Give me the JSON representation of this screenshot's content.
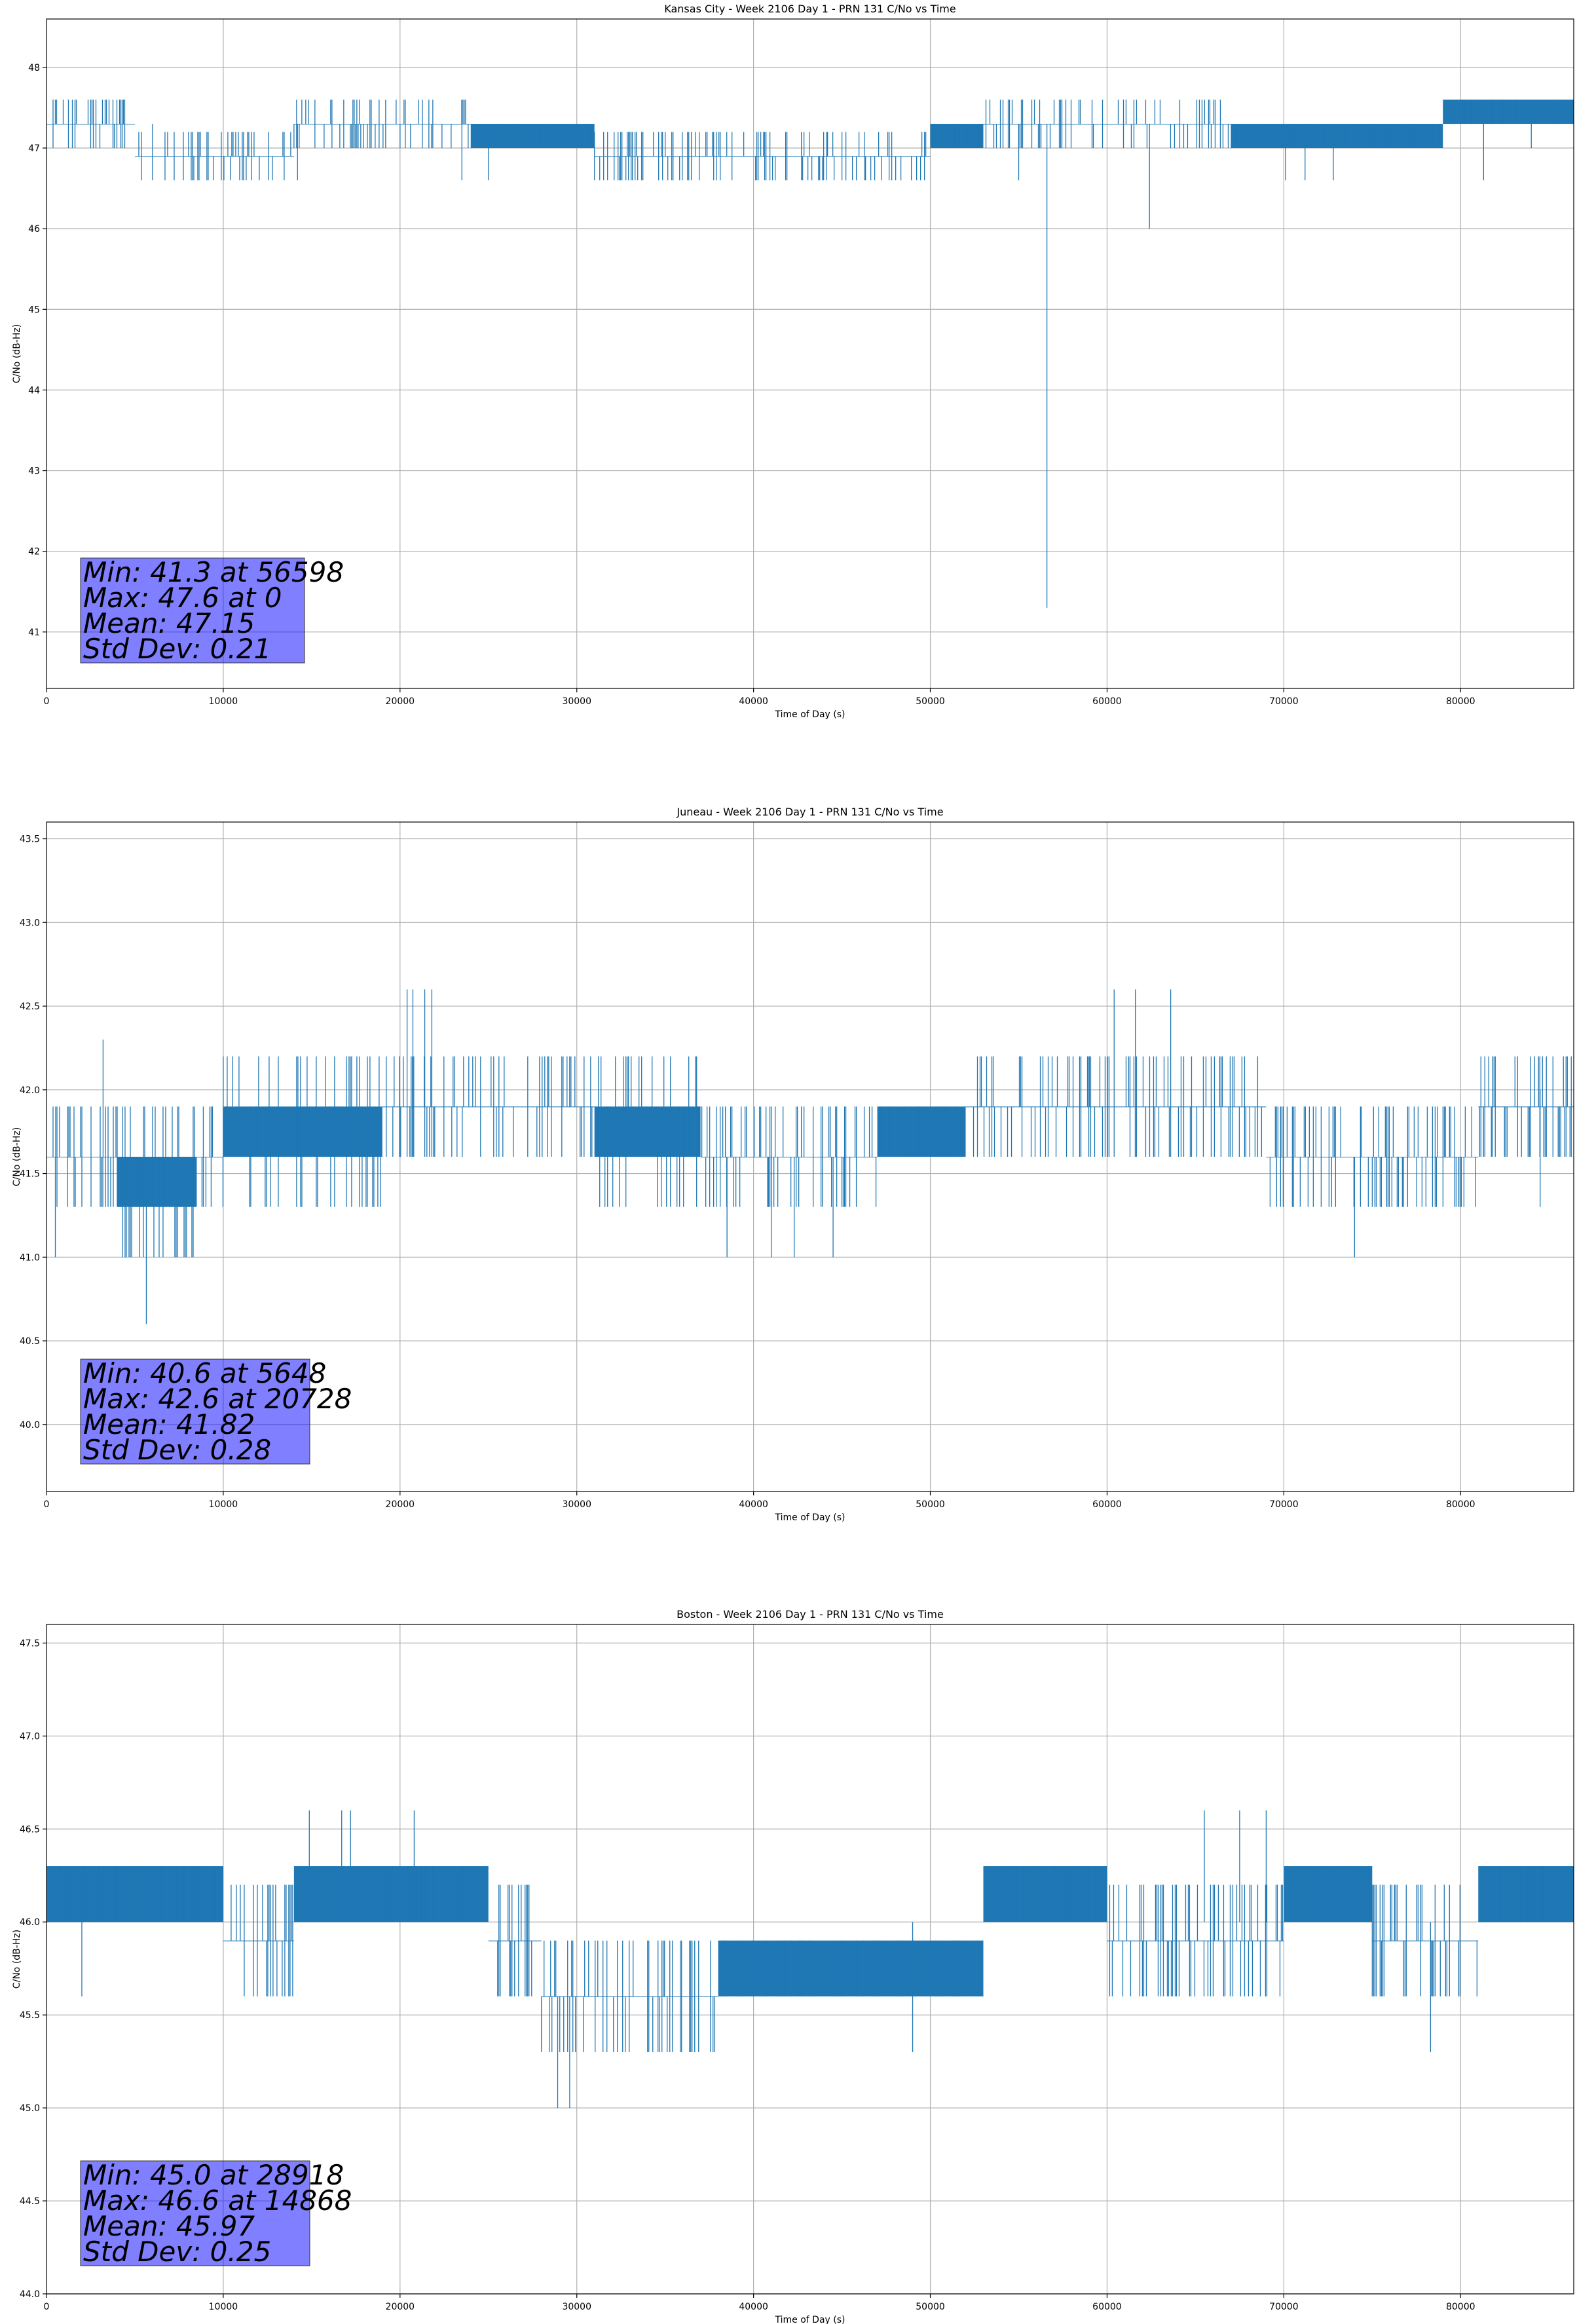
{
  "chart_data": [
    {
      "type": "line",
      "title": "Kansas City - Week 2106 Day 1 - PRN 131 C/No vs Time",
      "xlabel": "Time of Day (s)",
      "ylabel": "C/No (dB-Hz)",
      "xlim": [
        0,
        86400
      ],
      "ylim": [
        40.3,
        48.6
      ],
      "xticks": [
        0,
        10000,
        20000,
        30000,
        40000,
        50000,
        60000,
        70000,
        80000
      ],
      "yticks": [
        41,
        42,
        43,
        44,
        45,
        46,
        47,
        48
      ],
      "ytick_labels": [
        "41",
        "42",
        "43",
        "44",
        "45",
        "46",
        "47",
        "48"
      ],
      "grid": true,
      "color": "#1f77b4",
      "stats": {
        "min": "Min: 41.3 at 56598",
        "max": "Max: 47.6 at 0",
        "mean": "Mean: 47.15",
        "std": "Std Dev: 0.21"
      },
      "series": [
        {
          "segments": [
            {
              "x": [
                0,
                500
              ],
              "values": [
                47.0,
                47.6
              ]
            },
            {
              "x": [
                500,
                5000
              ],
              "values": [
                47.0,
                47.6
              ]
            },
            {
              "x": [
                5000,
                9000
              ],
              "values": [
                46.6,
                47.3
              ]
            },
            {
              "x": [
                9000,
                14000
              ],
              "values": [
                46.6,
                47.3
              ]
            },
            {
              "x": [
                14000,
                24000
              ],
              "values": [
                47.0,
                47.6
              ]
            },
            {
              "x": [
                24000,
                31000
              ],
              "values": [
                47.0,
                47.3
              ]
            },
            {
              "x": [
                31000,
                39000
              ],
              "values": [
                46.6,
                47.3
              ]
            },
            {
              "x": [
                39000,
                50000
              ],
              "values": [
                46.6,
                47.3
              ]
            },
            {
              "x": [
                50000,
                53000
              ],
              "values": [
                47.0,
                47.3
              ]
            },
            {
              "x": [
                53000,
                61000
              ],
              "values": [
                47.0,
                47.6
              ]
            },
            {
              "x": [
                61000,
                67000
              ],
              "values": [
                47.0,
                47.6
              ]
            },
            {
              "x": [
                67000,
                79000
              ],
              "values": [
                47.0,
                47.3
              ]
            },
            {
              "x": [
                79000,
                86400
              ],
              "values": [
                47.3,
                47.6
              ]
            }
          ],
          "spikes": [
            {
              "x": 56598,
              "values": [
                41.3,
                47.3
              ]
            },
            {
              "x": 62400,
              "values": [
                46.0,
                47.3
              ]
            },
            {
              "x": 81300,
              "values": [
                46.6,
                47.3
              ]
            },
            {
              "x": 6000,
              "values": [
                46.6,
                47.3
              ]
            },
            {
              "x": 14200,
              "values": [
                46.6,
                47.3
              ]
            },
            {
              "x": 23500,
              "values": [
                46.6,
                47.3
              ]
            },
            {
              "x": 25000,
              "values": [
                46.6,
                47.3
              ]
            },
            {
              "x": 55000,
              "values": [
                46.6,
                47.3
              ]
            },
            {
              "x": 70100,
              "values": [
                46.6,
                47.3
              ]
            },
            {
              "x": 71200,
              "values": [
                46.6,
                47.3
              ]
            },
            {
              "x": 72800,
              "values": [
                46.6,
                47.3
              ]
            },
            {
              "x": 84000,
              "values": [
                47.0,
                47.3
              ]
            }
          ]
        }
      ]
    },
    {
      "type": "line",
      "title": "Juneau - Week 2106 Day 1 - PRN 131 C/No vs Time",
      "xlabel": "Time of Day (s)",
      "ylabel": "C/No (dB-Hz)",
      "xlim": [
        0,
        86400
      ],
      "ylim": [
        39.6,
        43.6
      ],
      "xticks": [
        0,
        10000,
        20000,
        30000,
        40000,
        50000,
        60000,
        70000,
        80000
      ],
      "yticks": [
        40.0,
        40.5,
        41.0,
        41.5,
        42.0,
        42.5,
        43.0,
        43.5
      ],
      "ytick_labels": [
        "40.0",
        "40.5",
        "41.0",
        "41.5",
        "42.0",
        "42.5",
        "43.0",
        "43.5"
      ],
      "grid": true,
      "color": "#1f77b4",
      "stats": {
        "min": "Min: 40.6 at 5648",
        "max": "Max: 42.6 at 20728",
        "mean": "Mean: 41.82",
        "std": "Std Dev: 0.28"
      },
      "series": [
        {
          "segments": [
            {
              "x": [
                0,
                4000
              ],
              "values": [
                41.3,
                42.0
              ]
            },
            {
              "x": [
                4000,
                8500
              ],
              "values": [
                41.0,
                42.0
              ]
            },
            {
              "x": [
                8500,
                10000
              ],
              "values": [
                41.3,
                42.0
              ]
            },
            {
              "x": [
                10000,
                19000
              ],
              "values": [
                41.3,
                42.3
              ]
            },
            {
              "x": [
                19000,
                31000
              ],
              "values": [
                41.6,
                42.3
              ]
            },
            {
              "x": [
                31000,
                37000
              ],
              "values": [
                41.3,
                42.3
              ]
            },
            {
              "x": [
                37000,
                45000
              ],
              "values": [
                41.3,
                42.0
              ]
            },
            {
              "x": [
                45000,
                47000
              ],
              "values": [
                41.3,
                42.0
              ]
            },
            {
              "x": [
                47000,
                52000
              ],
              "values": [
                41.6,
                42.0
              ]
            },
            {
              "x": [
                52000,
                59000
              ],
              "values": [
                41.6,
                42.3
              ]
            },
            {
              "x": [
                59000,
                66000
              ],
              "values": [
                41.6,
                42.3
              ]
            },
            {
              "x": [
                66000,
                69000
              ],
              "values": [
                41.6,
                42.3
              ]
            },
            {
              "x": [
                69000,
                81000
              ],
              "values": [
                41.3,
                42.0
              ]
            },
            {
              "x": [
                81000,
                86400
              ],
              "values": [
                41.6,
                42.3
              ]
            }
          ],
          "spikes": [
            {
              "x": 5648,
              "values": [
                40.6,
                41.6
              ]
            },
            {
              "x": 500,
              "values": [
                41.0,
                41.6
              ]
            },
            {
              "x": 3200,
              "values": [
                41.6,
                42.3
              ]
            },
            {
              "x": 20400,
              "values": [
                41.6,
                42.6
              ]
            },
            {
              "x": 20728,
              "values": [
                41.6,
                42.6
              ]
            },
            {
              "x": 21400,
              "values": [
                41.6,
                42.6
              ]
            },
            {
              "x": 21800,
              "values": [
                41.6,
                42.6
              ]
            },
            {
              "x": 38500,
              "values": [
                41.0,
                41.6
              ]
            },
            {
              "x": 41000,
              "values": [
                41.0,
                41.6
              ]
            },
            {
              "x": 42300,
              "values": [
                41.0,
                41.6
              ]
            },
            {
              "x": 44500,
              "values": [
                41.0,
                41.6
              ]
            },
            {
              "x": 60400,
              "values": [
                41.6,
                42.6
              ]
            },
            {
              "x": 61600,
              "values": [
                41.6,
                42.6
              ]
            },
            {
              "x": 63600,
              "values": [
                41.6,
                42.6
              ]
            },
            {
              "x": 74000,
              "values": [
                41.0,
                41.6
              ]
            },
            {
              "x": 84500,
              "values": [
                41.3,
                42.0
              ]
            }
          ]
        }
      ]
    },
    {
      "type": "line",
      "title": "Boston - Week 2106 Day 1 - PRN 131 C/No vs Time",
      "xlabel": "Time of Day (s)",
      "ylabel": "C/No (dB-Hz)",
      "xlim": [
        0,
        86400
      ],
      "ylim": [
        44.0,
        47.6
      ],
      "xticks": [
        0,
        10000,
        20000,
        30000,
        40000,
        50000,
        60000,
        70000,
        80000
      ],
      "yticks": [
        44.0,
        44.5,
        45.0,
        45.5,
        46.0,
        46.5,
        47.0,
        47.5
      ],
      "ytick_labels": [
        "44.0",
        "44.5",
        "45.0",
        "45.5",
        "46.0",
        "46.5",
        "47.0",
        "47.5"
      ],
      "grid": true,
      "color": "#1f77b4",
      "stats": {
        "min": "Min: 45.0 at 28918",
        "max": "Max: 46.6 at 14868",
        "mean": "Mean: 45.97",
        "std": "Std Dev: 0.25"
      },
      "series": [
        {
          "segments": [
            {
              "x": [
                0,
                10000
              ],
              "values": [
                46.0,
                46.3
              ]
            },
            {
              "x": [
                10000,
                14000
              ],
              "values": [
                45.6,
                46.3
              ]
            },
            {
              "x": [
                14000,
                25000
              ],
              "values": [
                46.0,
                46.3
              ]
            },
            {
              "x": [
                25000,
                28000
              ],
              "values": [
                45.6,
                46.3
              ]
            },
            {
              "x": [
                28000,
                38000
              ],
              "values": [
                45.3,
                46.0
              ]
            },
            {
              "x": [
                38000,
                53000
              ],
              "values": [
                45.6,
                46.0
              ]
            },
            {
              "x": [
                53000,
                60000
              ],
              "values": [
                46.0,
                46.3
              ]
            },
            {
              "x": [
                60000,
                70000
              ],
              "values": [
                45.6,
                46.3
              ]
            },
            {
              "x": [
                70000,
                75000
              ],
              "values": [
                46.0,
                46.3
              ]
            },
            {
              "x": [
                75000,
                81000
              ],
              "values": [
                45.6,
                46.3
              ]
            },
            {
              "x": [
                81000,
                86400
              ],
              "values": [
                46.0,
                46.3
              ]
            }
          ],
          "spikes": [
            {
              "x": 28918,
              "values": [
                45.0,
                45.6
              ]
            },
            {
              "x": 29600,
              "values": [
                45.0,
                45.6
              ]
            },
            {
              "x": 14868,
              "values": [
                46.0,
                46.6
              ]
            },
            {
              "x": 16700,
              "values": [
                46.0,
                46.6
              ]
            },
            {
              "x": 17200,
              "values": [
                46.0,
                46.6
              ]
            },
            {
              "x": 20800,
              "values": [
                46.0,
                46.6
              ]
            },
            {
              "x": 49000,
              "values": [
                45.3,
                46.0
              ]
            },
            {
              "x": 65500,
              "values": [
                46.0,
                46.6
              ]
            },
            {
              "x": 67500,
              "values": [
                46.0,
                46.6
              ]
            },
            {
              "x": 69000,
              "values": [
                46.0,
                46.6
              ]
            },
            {
              "x": 78300,
              "values": [
                45.3,
                46.0
              ]
            },
            {
              "x": 2000,
              "values": [
                45.6,
                46.3
              ]
            }
          ]
        }
      ]
    }
  ]
}
